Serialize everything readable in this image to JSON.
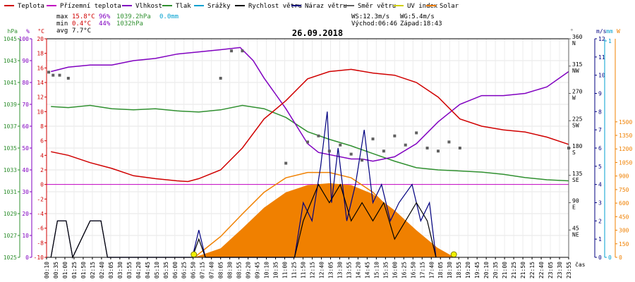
{
  "chart_data": {
    "type": "line",
    "title": "26.09.2018",
    "legend": [
      {
        "name": "Teplota",
        "color": "#d00000"
      },
      {
        "name": "Přízemní teplota",
        "color": "#c000c0"
      },
      {
        "name": "Vlhkost",
        "color": "#8000c0"
      },
      {
        "name": "Tlak",
        "color": "#309030"
      },
      {
        "name": "Srážky",
        "color": "#00a0d0"
      },
      {
        "name": "Rychlost větru",
        "color": "#000000"
      },
      {
        "name": "Náraz větru",
        "color": "#000080"
      },
      {
        "name": "Směr větru",
        "color": "#606060"
      },
      {
        "name": "UV index",
        "color": "#d0d000"
      },
      {
        "name": "Solar",
        "color": "#f08000"
      }
    ],
    "stats": {
      "max_label": "max",
      "min_label": "min",
      "avg_label": "avg",
      "max_temp": "15.8°C",
      "max_hum": "96%",
      "max_press": "1039.2hPa",
      "max_rain": "0.0mm",
      "min_temp": "0.4°C",
      "min_hum": "44%",
      "min_press": "1032hPa",
      "avg_temp": "7.7°C"
    },
    "wind_info": {
      "ws": "WS:12.3m/s",
      "wg": "WG:5.4m/s",
      "sunrise": "Východ:06:46",
      "sunset": "Západ:18:43"
    },
    "axis_units": {
      "press": "hPa",
      "hum": "%",
      "temp": "°C",
      "dir_top": "°",
      "wind": "m/s",
      "rain": "mm",
      "solar": "W",
      "time": "čas"
    },
    "x_ticks": [
      "00:10",
      "00:35",
      "01:00",
      "01:25",
      "01:50",
      "02:15",
      "02:40",
      "03:05",
      "03:30",
      "03:55",
      "04:20",
      "04:45",
      "05:10",
      "05:35",
      "06:00",
      "06:25",
      "06:50",
      "07:15",
      "07:40",
      "08:05",
      "08:30",
      "08:55",
      "09:20",
      "09:45",
      "10:10",
      "10:35",
      "11:00",
      "11:25",
      "11:50",
      "12:15",
      "12:40",
      "13:05",
      "13:30",
      "13:55",
      "14:20",
      "14:45",
      "15:10",
      "15:35",
      "16:00",
      "16:25",
      "16:50",
      "17:15",
      "17:40",
      "18:05",
      "18:30",
      "18:55",
      "19:20",
      "19:45",
      "20:10",
      "20:35",
      "21:00",
      "21:25",
      "21:50",
      "22:15",
      "22:40",
      "23:05",
      "23:30",
      "23:55"
    ],
    "press_ticks": [
      "1045",
      "1043",
      "1041",
      "1039",
      "1037",
      "1035",
      "1033",
      "1031",
      "1029",
      "1027",
      "1025"
    ],
    "hum_ticks": [
      "100",
      "90",
      "80",
      "70",
      "60",
      "50",
      "40",
      "30",
      "20",
      "10",
      "0"
    ],
    "temp_ticks": [
      "20",
      "18",
      "16",
      "14",
      "12",
      "10",
      "8",
      "6",
      "4",
      "2",
      "0",
      "-2",
      "-4",
      "-6",
      "-8",
      "-10"
    ],
    "dir_ticks": [
      "360 N",
      "315 NW",
      "270 W",
      "225 SW",
      "180 S",
      "135 SE",
      "90 E",
      "45 NE"
    ],
    "wind_ticks": [
      "12",
      "11",
      "10",
      "9",
      "8",
      "7",
      "6",
      "5",
      "4",
      "3",
      "2",
      "1",
      "0"
    ],
    "rain_ticks": [
      "1",
      "0"
    ],
    "solar_ticks": [
      "1500",
      "1350",
      "1200",
      "1050",
      "900",
      "750",
      "600",
      "450",
      "300",
      "150",
      "0"
    ],
    "temperature": [
      [
        0.2,
        4.5
      ],
      [
        1,
        4
      ],
      [
        2,
        3
      ],
      [
        3,
        2.2
      ],
      [
        4,
        1.2
      ],
      [
        5,
        0.8
      ],
      [
        6,
        0.5
      ],
      [
        6.5,
        0.4
      ],
      [
        7,
        0.8
      ],
      [
        8,
        2
      ],
      [
        9,
        5
      ],
      [
        10,
        9
      ],
      [
        11,
        11.5
      ],
      [
        12,
        14.5
      ],
      [
        13,
        15.5
      ],
      [
        14,
        15.8
      ],
      [
        15,
        15.3
      ],
      [
        16,
        15
      ],
      [
        17,
        14
      ],
      [
        18,
        12
      ],
      [
        19,
        9
      ],
      [
        20,
        8
      ],
      [
        21,
        7.5
      ],
      [
        22,
        7.2
      ],
      [
        23,
        6.5
      ],
      [
        24,
        5.5
      ]
    ],
    "humidity": [
      [
        0.2,
        85
      ],
      [
        1,
        87
      ],
      [
        2,
        88
      ],
      [
        3,
        88
      ],
      [
        4,
        90
      ],
      [
        5,
        91
      ],
      [
        6,
        93
      ],
      [
        7,
        94
      ],
      [
        8,
        95
      ],
      [
        8.9,
        96
      ],
      [
        9.5,
        90
      ],
      [
        10,
        82
      ],
      [
        10.5,
        75
      ],
      [
        11,
        68
      ],
      [
        11.5,
        60
      ],
      [
        12,
        52
      ],
      [
        12.5,
        48
      ],
      [
        13,
        47
      ],
      [
        14,
        45
      ],
      [
        14.5,
        45
      ],
      [
        15,
        44
      ],
      [
        16,
        46
      ],
      [
        17,
        52
      ],
      [
        18,
        62
      ],
      [
        19,
        70
      ],
      [
        20,
        74
      ],
      [
        21,
        74
      ],
      [
        22,
        75
      ],
      [
        23,
        78
      ],
      [
        24,
        85
      ]
    ],
    "pressure": [
      [
        0.2,
        1038.8
      ],
      [
        1,
        1038.7
      ],
      [
        2,
        1038.9
      ],
      [
        3,
        1038.6
      ],
      [
        4,
        1038.5
      ],
      [
        5,
        1038.6
      ],
      [
        6,
        1038.4
      ],
      [
        7,
        1038.3
      ],
      [
        8,
        1038.5
      ],
      [
        9,
        1038.9
      ],
      [
        10,
        1038.6
      ],
      [
        11,
        1037.8
      ],
      [
        12,
        1036.5
      ],
      [
        13,
        1035.8
      ],
      [
        14,
        1035.2
      ],
      [
        15,
        1034.5
      ],
      [
        16,
        1033.8
      ],
      [
        17,
        1033.2
      ],
      [
        18,
        1033
      ],
      [
        19,
        1032.9
      ],
      [
        20,
        1032.8
      ],
      [
        21,
        1032.6
      ],
      [
        22,
        1032.3
      ],
      [
        23,
        1032.1
      ],
      [
        24,
        1032
      ]
    ],
    "wind_speed": [
      [
        0.2,
        0
      ],
      [
        0.5,
        2
      ],
      [
        0.9,
        2
      ],
      [
        1.2,
        0
      ],
      [
        2,
        2
      ],
      [
        2.5,
        2
      ],
      [
        2.8,
        0
      ],
      [
        6.7,
        0
      ],
      [
        7,
        1
      ],
      [
        7.3,
        0
      ],
      [
        11.4,
        0
      ],
      [
        11.8,
        2
      ],
      [
        12.5,
        4
      ],
      [
        13,
        3
      ],
      [
        13.5,
        4
      ],
      [
        14,
        2
      ],
      [
        14.5,
        3
      ],
      [
        15,
        2
      ],
      [
        15.5,
        3
      ],
      [
        16,
        1
      ],
      [
        16.5,
        2
      ],
      [
        17,
        3
      ],
      [
        17.5,
        2
      ],
      [
        17.9,
        0
      ]
    ],
    "wind_gust": [
      [
        0.2,
        0
      ],
      [
        0.5,
        2
      ],
      [
        0.9,
        2
      ],
      [
        1.2,
        0
      ],
      [
        2,
        2
      ],
      [
        2.5,
        2
      ],
      [
        2.8,
        0
      ],
      [
        6.7,
        0
      ],
      [
        7,
        1.5
      ],
      [
        7.3,
        0
      ],
      [
        11.4,
        0
      ],
      [
        11.8,
        3
      ],
      [
        12.2,
        2
      ],
      [
        12.6,
        5
      ],
      [
        12.9,
        8
      ],
      [
        13.1,
        3
      ],
      [
        13.4,
        6
      ],
      [
        13.8,
        2
      ],
      [
        14.2,
        4
      ],
      [
        14.6,
        7
      ],
      [
        15,
        3
      ],
      [
        15.4,
        4
      ],
      [
        15.8,
        2
      ],
      [
        16.2,
        3
      ],
      [
        16.8,
        4
      ],
      [
        17.2,
        2
      ],
      [
        17.6,
        3
      ],
      [
        17.9,
        0
      ]
    ],
    "wind_dir": [
      [
        0.1,
        305
      ],
      [
        0.3,
        300
      ],
      [
        0.6,
        300
      ],
      [
        1,
        295
      ],
      [
        8,
        295
      ],
      [
        8.5,
        340
      ],
      [
        9,
        340
      ],
      [
        11,
        155
      ],
      [
        12,
        190
      ],
      [
        12.5,
        200
      ],
      [
        13,
        175
      ],
      [
        13.5,
        185
      ],
      [
        14,
        170
      ],
      [
        14.5,
        160
      ],
      [
        15,
        195
      ],
      [
        15.5,
        175
      ],
      [
        16,
        200
      ],
      [
        16.5,
        185
      ],
      [
        17,
        205
      ],
      [
        17.5,
        180
      ],
      [
        18,
        175
      ],
      [
        18.5,
        190
      ],
      [
        19,
        180
      ],
      [
        24,
        180
      ]
    ],
    "solar": [
      [
        6.8,
        0
      ],
      [
        8,
        100
      ],
      [
        9,
        320
      ],
      [
        10,
        550
      ],
      [
        11,
        720
      ],
      [
        12,
        800
      ],
      [
        13,
        820
      ],
      [
        14,
        800
      ],
      [
        15,
        700
      ],
      [
        16,
        520
      ],
      [
        17,
        300
      ],
      [
        18,
        100
      ],
      [
        18.7,
        0
      ]
    ],
    "solar_theory": [
      [
        6.8,
        0
      ],
      [
        8,
        230
      ],
      [
        9,
        480
      ],
      [
        10,
        720
      ],
      [
        11,
        880
      ],
      [
        12,
        940
      ],
      [
        13,
        940
      ],
      [
        14,
        880
      ],
      [
        15,
        720
      ],
      [
        16,
        480
      ],
      [
        17,
        230
      ],
      [
        18.7,
        0
      ]
    ]
  }
}
